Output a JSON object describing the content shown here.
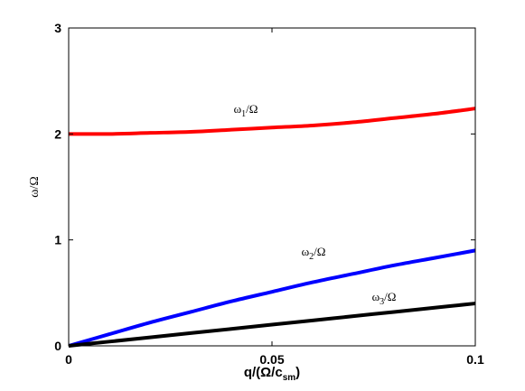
{
  "chart_data": {
    "type": "line",
    "xlabel": "q/(Ω/c",
    "xlabel_sub": "sm",
    "xlabel_end": ")",
    "ylabel": "ω/Ω",
    "xlim": [
      0,
      0.1
    ],
    "ylim": [
      0,
      3
    ],
    "xticks": [
      0,
      0.05,
      0.1
    ],
    "xtick_labels": [
      "0",
      "0.05",
      "0.1"
    ],
    "yticks": [
      0,
      1,
      2,
      3
    ],
    "ytick_labels": [
      "0",
      "1",
      "2",
      "3"
    ],
    "grid": false,
    "series": [
      {
        "label_main": "ω",
        "label_sub": "1",
        "label_tail": "/Ω",
        "color": "#ff0000",
        "x": [
          0,
          0.01,
          0.02,
          0.03,
          0.04,
          0.05,
          0.06,
          0.07,
          0.08,
          0.09,
          0.1
        ],
        "y": [
          2.0,
          2.0,
          2.01,
          2.02,
          2.04,
          2.06,
          2.08,
          2.11,
          2.15,
          2.19,
          2.24
        ]
      },
      {
        "label_main": "ω",
        "label_sub": "2",
        "label_tail": "/Ω",
        "color": "#0000ff",
        "x": [
          0,
          0.01,
          0.02,
          0.03,
          0.04,
          0.05,
          0.06,
          0.07,
          0.08,
          0.09,
          0.1
        ],
        "y": [
          0,
          0.11,
          0.22,
          0.32,
          0.42,
          0.51,
          0.6,
          0.68,
          0.76,
          0.83,
          0.9
        ]
      },
      {
        "label_main": "ω",
        "label_sub": "3",
        "label_tail": "/Ω",
        "color": "#000000",
        "x": [
          0,
          0.01,
          0.02,
          0.03,
          0.04,
          0.05,
          0.06,
          0.07,
          0.08,
          0.09,
          0.1
        ],
        "y": [
          0,
          0.04,
          0.08,
          0.12,
          0.16,
          0.2,
          0.24,
          0.28,
          0.32,
          0.36,
          0.4
        ]
      }
    ]
  }
}
